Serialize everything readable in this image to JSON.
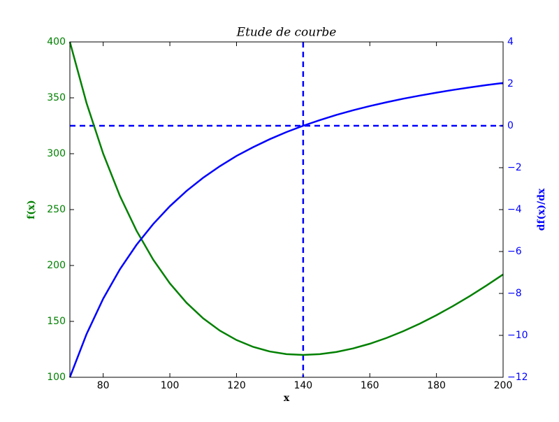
{
  "chart_data": {
    "type": "line",
    "title": "Etude de courbe",
    "x_label": "x",
    "y_label": "f(x)",
    "y2_label": "df(x)/dx",
    "x": [
      70,
      75,
      80,
      85,
      90,
      95,
      100,
      105,
      110,
      115,
      120,
      125,
      130,
      135,
      140,
      145,
      150,
      155,
      160,
      165,
      170,
      175,
      180,
      185,
      190,
      195,
      200
    ],
    "series": [
      {
        "name": "f(x)",
        "color": "#008000",
        "axis": "y",
        "values": [
          400,
          345.33,
          300,
          262.35,
          231.11,
          205.26,
          184,
          166.67,
          152.73,
          141.74,
          133.33,
          127.2,
          123.08,
          120.74,
          120,
          120.69,
          122.67,
          125.81,
          130,
          135.15,
          141.18,
          148,
          155.56,
          163.78,
          172.63,
          182.05,
          192
        ]
      },
      {
        "name": "df(x)/dx",
        "color": "#0000ff",
        "axis": "y2",
        "values": [
          -12,
          -9.94,
          -8.25,
          -6.85,
          -5.68,
          -4.69,
          -3.84,
          -3.11,
          -2.48,
          -1.93,
          -1.44,
          -1.02,
          -0.64,
          -0.3,
          0,
          0.27,
          0.52,
          0.74,
          0.94,
          1.12,
          1.29,
          1.44,
          1.58,
          1.71,
          1.83,
          1.94,
          2.04
        ]
      }
    ],
    "reference_lines": {
      "x": 140,
      "y2": 0,
      "color": "#0000ff"
    },
    "xlim": [
      70,
      200
    ],
    "xticks": [
      80,
      100,
      120,
      140,
      160,
      180,
      200
    ],
    "ylim": [
      100,
      400
    ],
    "yticks": [
      100,
      150,
      200,
      250,
      300,
      350,
      400
    ],
    "y2lim": [
      -12,
      4
    ],
    "y2ticks": [
      {
        "value": -12,
        "label": "−12"
      },
      {
        "value": -10,
        "label": "−10"
      },
      {
        "value": -8,
        "label": "−8"
      },
      {
        "value": -6,
        "label": "−6"
      },
      {
        "value": -4,
        "label": "−4"
      },
      {
        "value": -2,
        "label": "−2"
      },
      0,
      2,
      4
    ]
  }
}
